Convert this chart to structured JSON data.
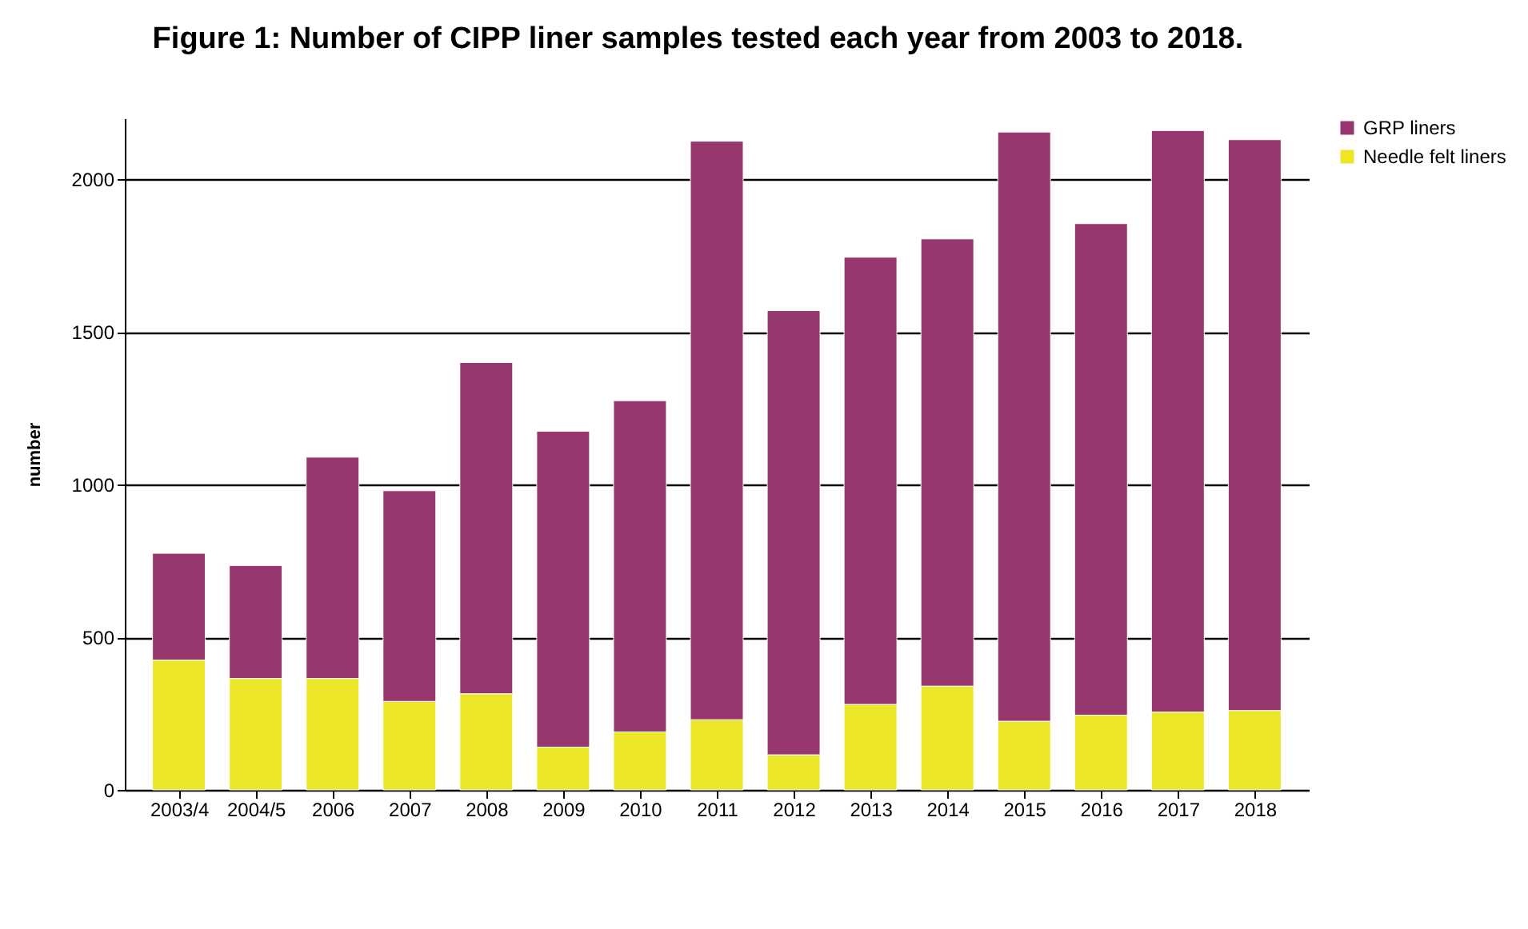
{
  "chart_data": {
    "type": "bar",
    "title": "Figure 1: Number of CIPP liner samples tested each year from 2003 to 2018.",
    "ylabel": "number",
    "categories": [
      "2003/4",
      "2004/5",
      "2006",
      "2007",
      "2008",
      "2009",
      "2010",
      "2011",
      "2012",
      "2013",
      "2014",
      "2015",
      "2016",
      "2017",
      "2018"
    ],
    "stacked": true,
    "series": [
      {
        "name": "Needle felt liners",
        "color": "#ece629",
        "values": [
          425,
          365,
          365,
          290,
          315,
          140,
          190,
          230,
          115,
          280,
          340,
          225,
          245,
          255,
          260
        ]
      },
      {
        "name": "GRP liners",
        "color": "#96376e",
        "values": [
          350,
          370,
          725,
          690,
          1085,
          1035,
          1085,
          1895,
          1455,
          1465,
          1465,
          1930,
          1610,
          1905,
          1870
        ]
      }
    ],
    "ylim": [
      0,
      2200
    ],
    "yticks": [
      0,
      500,
      1000,
      1500,
      2000
    ],
    "grid": "y",
    "legend": "right"
  }
}
